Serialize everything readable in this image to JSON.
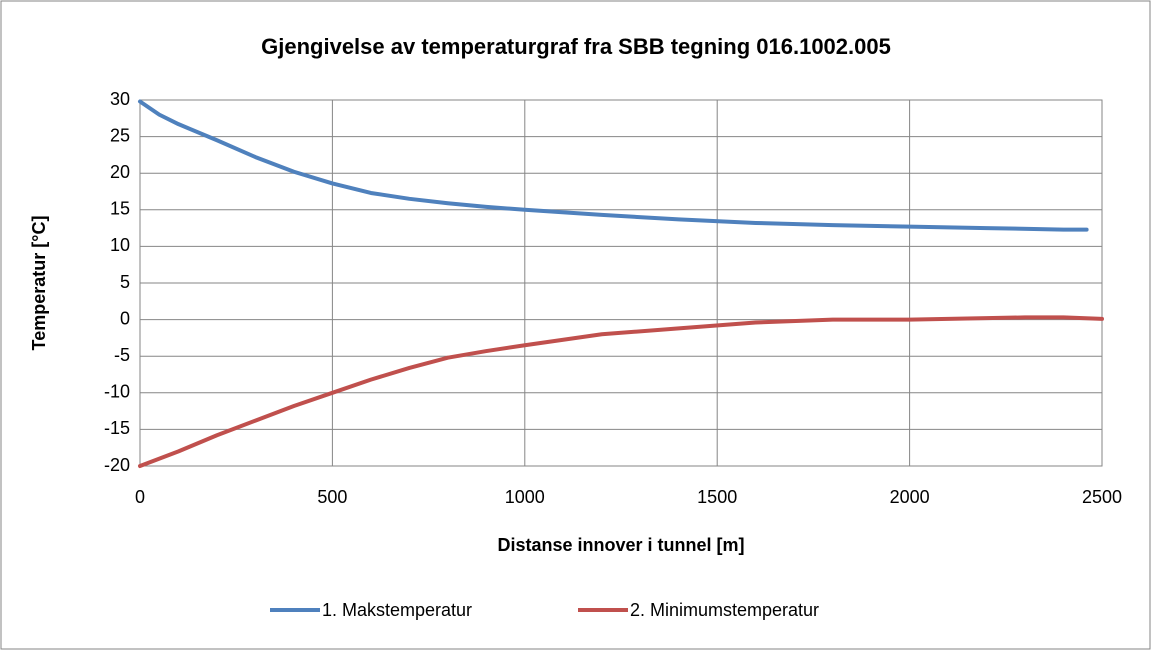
{
  "chart_data": {
    "type": "line",
    "title": "Gjengivelse av temperaturgraf fra SBB tegning 016.1002.005",
    "x_label": "Distanse innover i tunnel [m]",
    "y_label": "Temperatur [°C]",
    "xlim": [
      0,
      2500
    ],
    "xticks": [
      0,
      500,
      1000,
      1500,
      2000,
      2500
    ],
    "ylim": [
      -20,
      30
    ],
    "yticks": [
      -20,
      -15,
      -10,
      -5,
      0,
      5,
      10,
      15,
      20,
      25,
      30
    ],
    "grid": true,
    "legend": "bottom",
    "series": [
      {
        "name": "1. Makstemperatur",
        "color": "#4f81bd",
        "x": [
          0,
          50,
          100,
          200,
          300,
          400,
          500,
          600,
          700,
          800,
          900,
          1000,
          1200,
          1400,
          1600,
          1800,
          2000,
          2200,
          2400,
          2460
        ],
        "values": [
          29.8,
          28,
          26.7,
          24.5,
          22.2,
          20.2,
          18.6,
          17.3,
          16.5,
          15.9,
          15.4,
          15,
          14.3,
          13.7,
          13.2,
          12.9,
          12.7,
          12.5,
          12.3,
          12.3
        ]
      },
      {
        "name": "2. Minimumstemperatur",
        "color": "#c0504d",
        "x": [
          0,
          100,
          200,
          300,
          400,
          500,
          600,
          700,
          800,
          900,
          1000,
          1200,
          1400,
          1600,
          1800,
          2000,
          2200,
          2300,
          2400,
          2500
        ],
        "values": [
          -20,
          -18,
          -15.8,
          -13.8,
          -11.8,
          -10,
          -8.2,
          -6.6,
          -5.2,
          -4.3,
          -3.5,
          -2,
          -1.2,
          -0.4,
          0,
          0,
          0.2,
          0.3,
          0.3,
          0.1
        ]
      }
    ]
  }
}
